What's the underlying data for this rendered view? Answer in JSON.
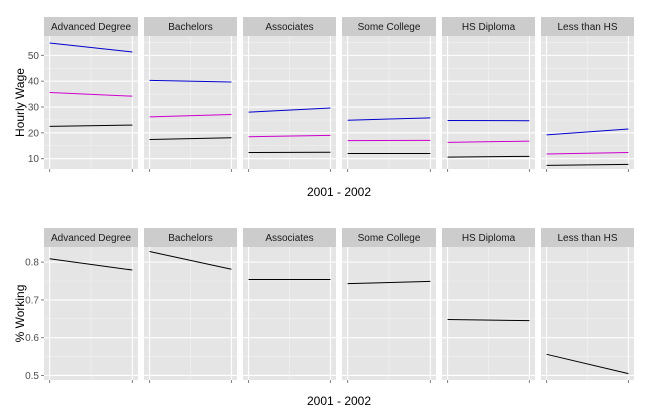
{
  "chart_data": [
    {
      "type": "line",
      "xlabel": "2001 - 2002",
      "ylabel": "Hourly Wage",
      "x": [
        "2001",
        "2002"
      ],
      "ylim": [
        6,
        57.5
      ],
      "yticks": [
        10,
        20,
        30,
        40,
        50
      ],
      "grid": true,
      "legend": "none",
      "colors": [
        "#0000cc",
        "#cc00cc",
        "#000000"
      ],
      "panels": [
        {
          "label": "Advanced Degree",
          "series": [
            {
              "values": [
                54.8,
                51.3
              ]
            },
            {
              "values": [
                35.6,
                34.2
              ]
            },
            {
              "values": [
                22.5,
                23.0
              ]
            }
          ]
        },
        {
          "label": "Bachelors",
          "series": [
            {
              "values": [
                40.3,
                39.7
              ]
            },
            {
              "values": [
                26.2,
                27.1
              ]
            },
            {
              "values": [
                17.4,
                18.1
              ]
            }
          ]
        },
        {
          "label": "Associates",
          "series": [
            {
              "values": [
                28.0,
                29.6
              ]
            },
            {
              "values": [
                18.5,
                19.0
              ]
            },
            {
              "values": [
                12.4,
                12.5
              ]
            }
          ]
        },
        {
          "label": "Some College",
          "series": [
            {
              "values": [
                24.9,
                25.8
              ]
            },
            {
              "values": [
                17.0,
                17.1
              ]
            },
            {
              "values": [
                12.0,
                12.0
              ]
            }
          ]
        },
        {
          "label": "HS Diploma",
          "series": [
            {
              "values": [
                24.8,
                24.7
              ]
            },
            {
              "values": [
                16.3,
                16.8
              ]
            },
            {
              "values": [
                10.6,
                10.9
              ]
            }
          ]
        },
        {
          "label": "Less than HS",
          "series": [
            {
              "values": [
                19.2,
                21.5
              ]
            },
            {
              "values": [
                11.8,
                12.4
              ]
            },
            {
              "values": [
                7.4,
                7.8
              ]
            }
          ]
        }
      ]
    },
    {
      "type": "line",
      "xlabel": "2001 - 2002",
      "ylabel": "% Working",
      "x": [
        "2001",
        "2002"
      ],
      "ylim": [
        0.488,
        0.84
      ],
      "yticks": [
        0.5,
        0.6,
        0.7,
        0.8
      ],
      "ytick_labels": [
        "0.5",
        "0.6",
        "0.7",
        "0.8"
      ],
      "grid": true,
      "legend": "none",
      "colors": [
        "#000000"
      ],
      "panels": [
        {
          "label": "Advanced Degree",
          "series": [
            {
              "values": [
                0.809,
                0.779
              ]
            }
          ]
        },
        {
          "label": "Bachelors",
          "series": [
            {
              "values": [
                0.828,
                0.781
              ]
            }
          ]
        },
        {
          "label": "Associates",
          "series": [
            {
              "values": [
                0.754,
                0.754
              ]
            }
          ]
        },
        {
          "label": "Some College",
          "series": [
            {
              "values": [
                0.743,
                0.749
              ]
            }
          ]
        },
        {
          "label": "HS Diploma",
          "series": [
            {
              "values": [
                0.648,
                0.645
              ]
            }
          ]
        },
        {
          "label": "Less than HS",
          "series": [
            {
              "values": [
                0.556,
                0.505
              ]
            }
          ]
        }
      ]
    }
  ]
}
